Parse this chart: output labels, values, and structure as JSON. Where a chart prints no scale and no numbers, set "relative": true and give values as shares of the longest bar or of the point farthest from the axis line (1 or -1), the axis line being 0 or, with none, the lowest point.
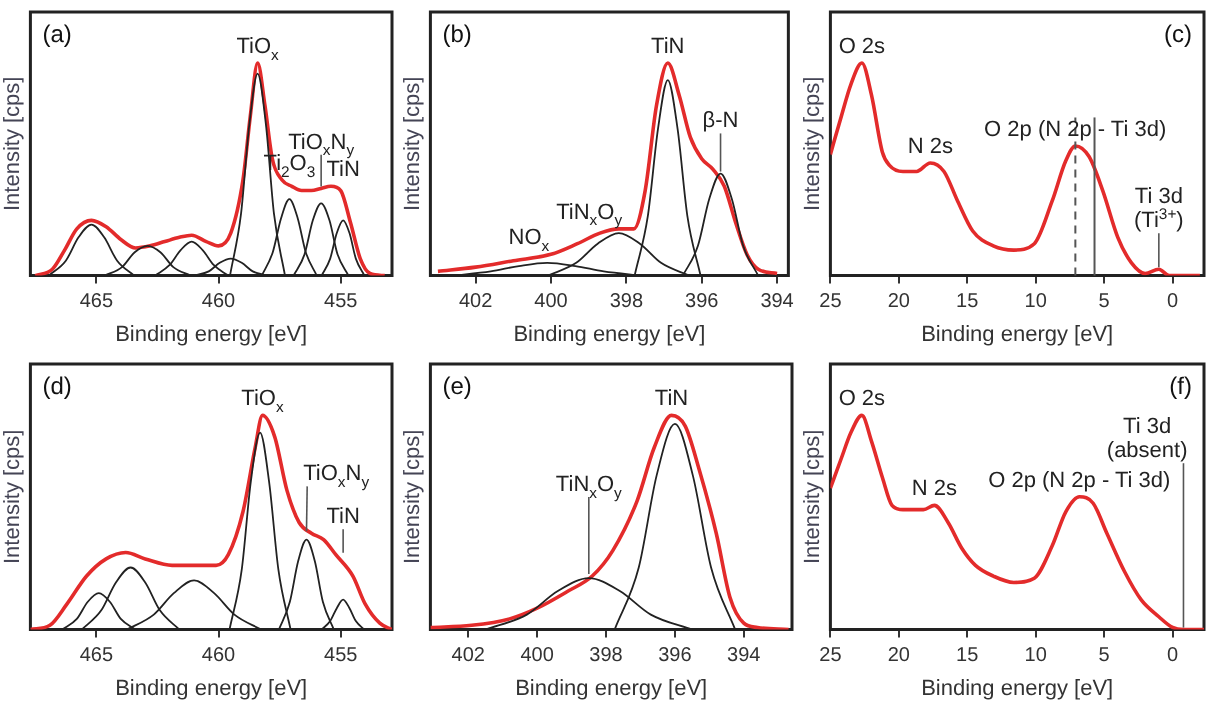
{
  "chart_data": [
    {
      "type": "line",
      "title": "(a)",
      "xlabel": "Binding energy [eV]",
      "ylabel": "Intensity [cps]",
      "relative": true,
      "tick_labels": "x",
      "xlim": [
        467.7,
        452.9
      ],
      "xticks": [
        465,
        460,
        455
      ],
      "series": [
        {
          "color": "#e32b2b",
          "x": [
            467.5,
            466.8,
            466.3,
            465.8,
            465.2,
            464.6,
            464.0,
            463.4,
            462.8,
            462.2,
            461.6,
            461.1,
            460.5,
            460.0,
            459.5,
            459.0,
            458.7,
            458.4,
            458.1,
            457.8,
            457.4,
            457.0,
            456.6,
            456.2,
            455.8,
            455.4,
            455.0,
            454.6,
            454.2,
            453.8,
            453.2
          ],
          "values": [
            0,
            0.03,
            0.12,
            0.22,
            0.26,
            0.23,
            0.17,
            0.13,
            0.14,
            0.16,
            0.18,
            0.19,
            0.16,
            0.14,
            0.2,
            0.45,
            0.75,
            1.0,
            0.8,
            0.55,
            0.45,
            0.42,
            0.4,
            0.4,
            0.41,
            0.42,
            0.4,
            0.25,
            0.08,
            0.01,
            0
          ]
        },
        {
          "color": "#222222",
          "x": [
            466.95,
            466.25,
            465.73,
            465.2,
            464.68,
            464.15,
            463.45
          ],
          "values": [
            0,
            0.07,
            0.18,
            0.24,
            0.18,
            0.07,
            0
          ]
        },
        {
          "color": "#222222",
          "x": [
            464.65,
            463.95,
            463.43,
            462.9,
            462.38,
            461.85,
            461.15
          ],
          "values": [
            0,
            0.04,
            0.11,
            0.14,
            0.11,
            0.04,
            0
          ]
        },
        {
          "color": "#222222",
          "x": [
            462.6,
            462.0,
            461.55,
            461.1,
            460.65,
            460.2,
            459.6
          ],
          "values": [
            0,
            0.05,
            0.12,
            0.16,
            0.12,
            0.05,
            0
          ]
        },
        {
          "color": "#222222",
          "x": [
            461.0,
            460.4,
            459.95,
            459.5,
            459.05,
            458.6,
            458.0
          ],
          "values": [
            0,
            0.02,
            0.06,
            0.08,
            0.06,
            0.02,
            0
          ]
        },
        {
          "color": "#222222",
          "x": [
            459.53,
            459.08,
            458.74,
            458.4,
            458.06,
            457.73,
            457.28
          ],
          "values": [
            0,
            0.29,
            0.71,
            0.95,
            0.71,
            0.29,
            0
          ]
        },
        {
          "color": "#222222",
          "x": [
            458.23,
            457.78,
            457.44,
            457.1,
            456.76,
            456.43,
            455.98
          ],
          "values": [
            0,
            0.11,
            0.27,
            0.36,
            0.27,
            0.11,
            0
          ]
        },
        {
          "color": "#222222",
          "x": [
            456.93,
            456.48,
            456.14,
            455.8,
            455.46,
            455.13,
            454.68
          ],
          "values": [
            0,
            0.1,
            0.26,
            0.34,
            0.26,
            0.1,
            0
          ]
        },
        {
          "color": "#222222",
          "x": [
            455.78,
            455.43,
            455.16,
            454.9,
            454.64,
            454.38,
            454.03
          ],
          "values": [
            0,
            0.08,
            0.2,
            0.26,
            0.2,
            0.08,
            0
          ]
        }
      ],
      "annotations": [
        {
          "text": "TiO$_{x}$",
          "x": 458.4,
          "y": 1.0
        },
        {
          "text": "TiN",
          "x": 454.9,
          "y": 0.42
        },
        {
          "text": "TiO$_{x}$N$_{y}$",
          "x": 455.8,
          "y": 0.41
        },
        {
          "text": "Ti$_{2}$O$_{3}$",
          "x": 457.1,
          "y": 0.45
        }
      ]
    },
    {
      "type": "line",
      "title": "(b)",
      "xlabel": "Binding energy [eV]",
      "ylabel": "Intensity [cps]",
      "relative": true,
      "tick_labels": "x",
      "xlim": [
        403.2,
        393.7
      ],
      "xticks": [
        402,
        400,
        398,
        396,
        394
      ],
      "series": [
        {
          "color": "#e32b2b",
          "x": [
            403.0,
            402.0,
            401.0,
            400.0,
            399.3,
            398.7,
            398.2,
            397.8,
            397.5,
            397.2,
            396.9,
            396.6,
            396.3,
            396.0,
            395.7,
            395.4,
            395.1,
            394.8,
            394.5,
            394.0
          ],
          "values": [
            0.02,
            0.04,
            0.07,
            0.1,
            0.15,
            0.2,
            0.22,
            0.22,
            0.4,
            0.8,
            1.0,
            0.85,
            0.65,
            0.55,
            0.5,
            0.42,
            0.25,
            0.1,
            0.03,
            0.01
          ]
        },
        {
          "color": "#222222",
          "x": [
            402.6,
            401.6,
            400.85,
            400.1,
            399.35,
            398.6,
            397.6
          ],
          "values": [
            0,
            0.02,
            0.045,
            0.06,
            0.045,
            0.02,
            0
          ]
        },
        {
          "color": "#222222",
          "x": [
            400.08,
            399.33,
            398.76,
            398.2,
            397.64,
            397.08,
            396.33
          ],
          "values": [
            0,
            0.06,
            0.15,
            0.2,
            0.15,
            0.06,
            0
          ]
        },
        {
          "color": "#222222",
          "x": [
            397.78,
            397.43,
            397.16,
            396.9,
            396.64,
            396.38,
            396.03
          ],
          "values": [
            0,
            0.28,
            0.69,
            0.92,
            0.69,
            0.28,
            0
          ]
        },
        {
          "color": "#222222",
          "x": [
            396.5,
            396.1,
            395.8,
            395.5,
            395.2,
            394.9,
            394.5
          ],
          "values": [
            0,
            0.14,
            0.36,
            0.48,
            0.36,
            0.14,
            0
          ]
        }
      ],
      "annotations": [
        {
          "text": "TiN",
          "x": 396.9,
          "y": 1.0
        },
        {
          "text": "β-N",
          "x": 395.5,
          "y": 0.48
        },
        {
          "text": "TiN$_{x}$O$_{y}$",
          "x": 398.2,
          "y": 0.22
        },
        {
          "text": "NO$_{x}$",
          "x": 400.1,
          "y": 0.1
        }
      ]
    },
    {
      "type": "line",
      "title": "(c)",
      "xlabel": "Binding energy [eV]",
      "ylabel": "Intensity [cps]",
      "relative": true,
      "tick_labels": "x",
      "xlim": [
        25,
        -2.3
      ],
      "xticks": [
        25,
        20,
        15,
        10,
        5,
        0
      ],
      "series": [
        {
          "color": "#e32b2b",
          "x": [
            25,
            24.2,
            23.5,
            22.7,
            22.0,
            21.2,
            20.7,
            19.7,
            18.7,
            17.7,
            16.7,
            15.7,
            14.6,
            13.1,
            11.6,
            10.1,
            8.8,
            7.8,
            7.1,
            6.1,
            5.1,
            4.0,
            3.0,
            2.0,
            1.0,
            0.25,
            -2.0
          ],
          "values": [
            0.57,
            0.75,
            0.9,
            1.0,
            0.85,
            0.58,
            0.52,
            0.49,
            0.49,
            0.53,
            0.49,
            0.35,
            0.21,
            0.14,
            0.12,
            0.15,
            0.35,
            0.54,
            0.61,
            0.56,
            0.4,
            0.18,
            0.06,
            0.01,
            0.03,
            0,
            0
          ]
        }
      ],
      "ref_lines": [
        {
          "axis": "x",
          "value": 7.1,
          "line_style": "dashed",
          "color": "#555555"
        },
        {
          "axis": "x",
          "value": 5.7,
          "color": "#555555"
        }
      ],
      "annotations": [
        {
          "text": "O 2s",
          "x": 22.7,
          "y": 1.0
        },
        {
          "text": "N 2s",
          "x": 17.7,
          "y": 0.53
        },
        {
          "text": "O 2p (N 2p - Ti 3d)",
          "x": 7.1,
          "y": 0.61
        },
        {
          "text": "Ti 3d\n(Ti$^{3+}$)",
          "x": 1.0,
          "y": 0.03
        }
      ]
    },
    {
      "type": "line",
      "title": "(d)",
      "xlabel": "Binding energy [eV]",
      "ylabel": "Intensity [cps]",
      "relative": true,
      "tick_labels": "x",
      "xlim": [
        467.7,
        452.9
      ],
      "xticks": [
        465,
        460,
        455
      ],
      "series": [
        {
          "color": "#e32b2b",
          "x": [
            467.7,
            466.9,
            466.2,
            465.4,
            464.6,
            463.8,
            463.0,
            461.9,
            461.0,
            460.1,
            459.6,
            459.0,
            458.5,
            458.2,
            457.7,
            457.2,
            456.7,
            456.2,
            455.7,
            455.2,
            454.5,
            454.0,
            453.4,
            452.9
          ],
          "values": [
            0,
            0.02,
            0.12,
            0.25,
            0.33,
            0.36,
            0.33,
            0.3,
            0.3,
            0.3,
            0.35,
            0.55,
            0.85,
            1.0,
            0.9,
            0.65,
            0.5,
            0.45,
            0.42,
            0.35,
            0.25,
            0.12,
            0.03,
            0
          ]
        },
        {
          "color": "#222222",
          "x": [
            466.4,
            465.8,
            465.35,
            464.9,
            464.45,
            464.0,
            463.4
          ],
          "values": [
            0,
            0.05,
            0.13,
            0.17,
            0.13,
            0.05,
            0
          ]
        },
        {
          "color": "#222222",
          "x": [
            465.6,
            464.8,
            464.2,
            463.6,
            463.0,
            462.4,
            461.6
          ],
          "values": [
            0,
            0.09,
            0.22,
            0.29,
            0.22,
            0.09,
            0
          ]
        },
        {
          "color": "#222222",
          "x": [
            463.75,
            462.65,
            461.83,
            461.0,
            460.18,
            459.35,
            458.25
          ],
          "values": [
            0,
            0.07,
            0.17,
            0.23,
            0.17,
            0.07,
            0
          ]
        },
        {
          "color": "#222222",
          "x": [
            459.55,
            459.05,
            458.68,
            458.3,
            457.93,
            457.55,
            457.05
          ],
          "values": [
            0,
            0.28,
            0.69,
            0.92,
            0.69,
            0.28,
            0
          ]
        },
        {
          "color": "#222222",
          "x": [
            457.53,
            457.08,
            456.74,
            456.4,
            456.06,
            455.73,
            455.28
          ],
          "values": [
            0,
            0.13,
            0.32,
            0.42,
            0.32,
            0.13,
            0
          ]
        },
        {
          "color": "#222222",
          "x": [
            455.78,
            455.43,
            455.16,
            454.9,
            454.64,
            454.38,
            454.03
          ],
          "values": [
            0,
            0.04,
            0.1,
            0.14,
            0.1,
            0.04,
            0
          ]
        }
      ],
      "annotations": [
        {
          "text": "TiO$_{x}$",
          "x": 458.2,
          "y": 1.0
        },
        {
          "text": "TiO$_{x}$N$_{y}$",
          "x": 456.4,
          "y": 0.45
        },
        {
          "text": "TiN",
          "x": 454.9,
          "y": 0.35
        }
      ]
    },
    {
      "type": "line",
      "title": "(e)",
      "xlabel": "Binding energy [eV]",
      "ylabel": "Intensity [cps]",
      "relative": true,
      "tick_labels": "x",
      "xlim": [
        403.1,
        392.6
      ],
      "xticks": [
        402,
        400,
        398,
        396,
        394
      ],
      "series": [
        {
          "color": "#e32b2b",
          "x": [
            403.1,
            401.9,
            400.8,
            400.0,
            399.1,
            398.4,
            397.8,
            397.1,
            396.6,
            396.1,
            395.7,
            395.3,
            394.8,
            394.4,
            394.0,
            393.6,
            392.7
          ],
          "values": [
            0.01,
            0.02,
            0.05,
            0.1,
            0.18,
            0.25,
            0.37,
            0.6,
            0.85,
            1.0,
            0.95,
            0.75,
            0.45,
            0.15,
            0.03,
            0.01,
            0
          ]
        },
        {
          "color": "#222222",
          "x": [
            401.5,
            400.3,
            399.4,
            398.5,
            397.6,
            396.7,
            395.5
          ],
          "values": [
            0,
            0.07,
            0.18,
            0.24,
            0.18,
            0.07,
            0
          ]
        },
        {
          "color": "#222222",
          "x": [
            397.75,
            397.05,
            396.53,
            396.0,
            395.48,
            394.95,
            394.25
          ],
          "values": [
            0,
            0.29,
            0.72,
            0.96,
            0.72,
            0.29,
            0
          ]
        }
      ],
      "annotations": [
        {
          "text": "TiN",
          "x": 396.1,
          "y": 1.0
        },
        {
          "text": "TiN$_{x}$O$_{y}$",
          "x": 398.5,
          "y": 0.25
        }
      ]
    },
    {
      "type": "line",
      "title": "(f)",
      "xlabel": "Binding energy [eV]",
      "ylabel": "Intensity [cps]",
      "relative": true,
      "tick_labels": "x",
      "xlim": [
        25,
        -2.3
      ],
      "xticks": [
        25,
        20,
        15,
        10,
        5,
        0
      ],
      "series": [
        {
          "color": "#e32b2b",
          "x": [
            25,
            24.2,
            23.5,
            22.7,
            22.0,
            21.2,
            20.5,
            19.7,
            18.2,
            17.4,
            16.4,
            15.4,
            14.4,
            13.1,
            11.6,
            10.1,
            8.8,
            7.8,
            6.8,
            5.8,
            4.8,
            3.5,
            2.3,
            1.0,
            0,
            -0.8,
            -2.3
          ],
          "values": [
            0.66,
            0.8,
            0.92,
            1.0,
            0.88,
            0.71,
            0.58,
            0.56,
            0.56,
            0.58,
            0.5,
            0.38,
            0.3,
            0.25,
            0.22,
            0.24,
            0.39,
            0.55,
            0.62,
            0.59,
            0.45,
            0.27,
            0.14,
            0.06,
            0.01,
            0,
            0
          ]
        }
      ],
      "annotations": [
        {
          "text": "O 2s",
          "x": 22.7,
          "y": 1.0
        },
        {
          "text": "N 2s",
          "x": 17.4,
          "y": 0.58
        },
        {
          "text": "O 2p (N 2p - Ti 3d)",
          "x": 6.8,
          "y": 0.62
        },
        {
          "text": "Ti 3d\n(absent)",
          "x": -0.8,
          "y": 0
        }
      ]
    }
  ]
}
